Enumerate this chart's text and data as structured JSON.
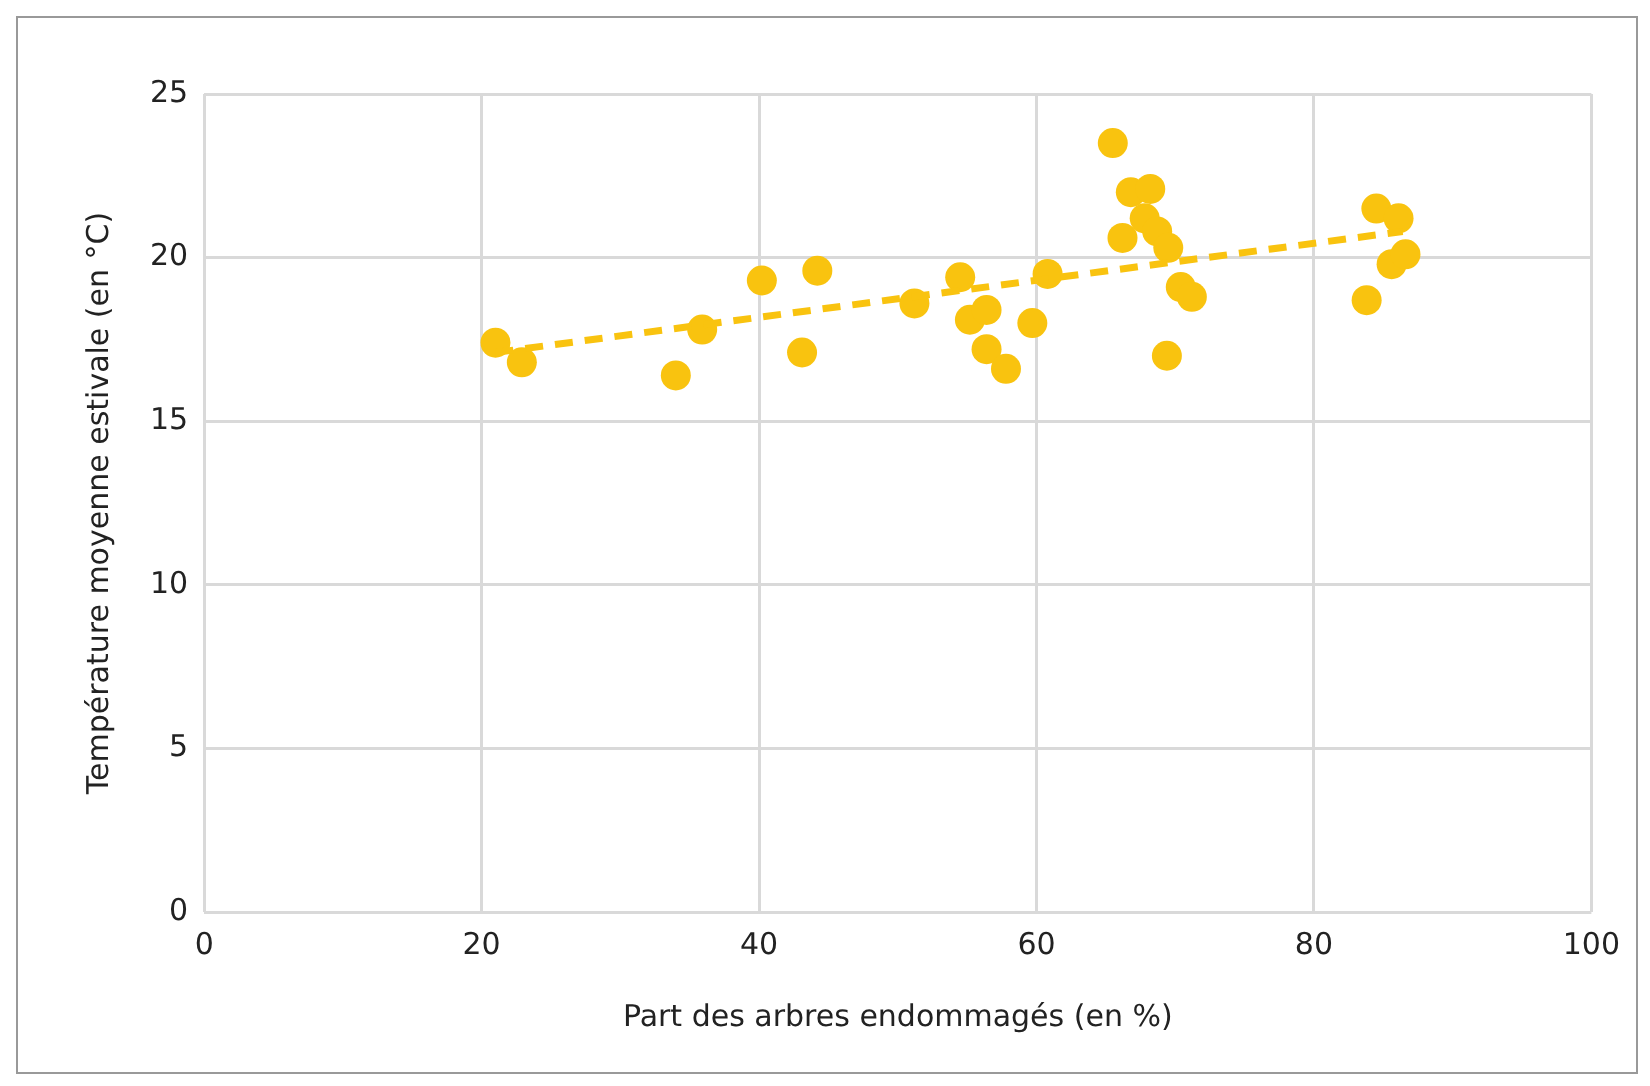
{
  "chart_data": {
    "type": "scatter",
    "xlabel": "Part des arbres endommagés (en %)",
    "ylabel": "Température moyenne estivale (en °C)",
    "xlim": [
      0,
      100
    ],
    "xticks": [
      0,
      20,
      40,
      60,
      80,
      100
    ],
    "ylim": [
      0,
      25
    ],
    "yticks": [
      0,
      5,
      10,
      15,
      20,
      25
    ],
    "grid": true,
    "legend": false,
    "marker": "circle",
    "series": [
      {
        "color": "#f9c30f",
        "x": [
          21.0,
          22.9,
          34.0,
          35.9,
          40.2,
          43.1,
          44.2,
          51.2,
          54.5,
          55.2,
          56.4,
          56.4,
          57.8,
          59.7,
          60.8,
          65.5,
          66.2,
          66.8,
          67.8,
          68.2,
          68.7,
          69.4,
          69.5,
          70.4,
          71.2,
          83.8,
          84.5,
          85.6,
          86.1,
          86.6
        ],
        "values": [
          17.4,
          16.8,
          16.4,
          17.8,
          19.3,
          17.1,
          19.6,
          18.6,
          19.4,
          18.1,
          18.4,
          17.2,
          16.6,
          18.0,
          19.5,
          23.5,
          20.6,
          22.0,
          21.2,
          22.1,
          20.8,
          17.0,
          20.3,
          19.1,
          18.8,
          18.7,
          21.5,
          19.8,
          21.2,
          20.1
        ]
      },
      {
        "type": "line",
        "color": "#f9c30f",
        "line_style": "dashed",
        "marker": "none",
        "x": [
          21.0,
          86.4
        ],
        "values": [
          17.1,
          20.8
        ]
      }
    ]
  }
}
